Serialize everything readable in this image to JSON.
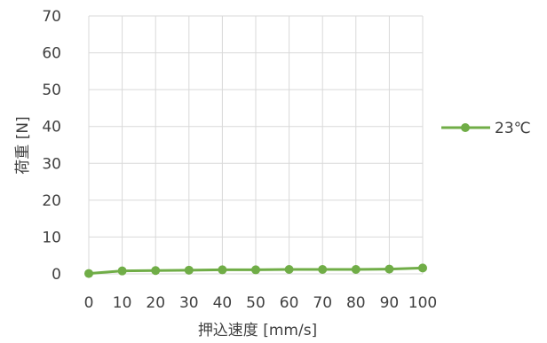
{
  "chart_data": {
    "type": "line",
    "title": "",
    "xlabel": "押込速度 [mm/s]",
    "ylabel": "荷重 [N]",
    "x": [
      0,
      10,
      20,
      30,
      40,
      50,
      60,
      70,
      80,
      90,
      100
    ],
    "x_ticks": [
      "0",
      "10",
      "20",
      "30",
      "40",
      "50",
      "60",
      "70",
      "80",
      "90",
      "100"
    ],
    "y_ticks": [
      "0",
      "10",
      "20",
      "30",
      "40",
      "50",
      "60",
      "70"
    ],
    "ylim": [
      0,
      70
    ],
    "xlim": [
      0,
      100
    ],
    "grid": true,
    "legend_position": "right",
    "series": [
      {
        "name": "23℃",
        "color": "#70ad47",
        "values": [
          0.1,
          0.8,
          0.9,
          1.0,
          1.1,
          1.1,
          1.2,
          1.2,
          1.2,
          1.3,
          1.6
        ]
      }
    ]
  }
}
